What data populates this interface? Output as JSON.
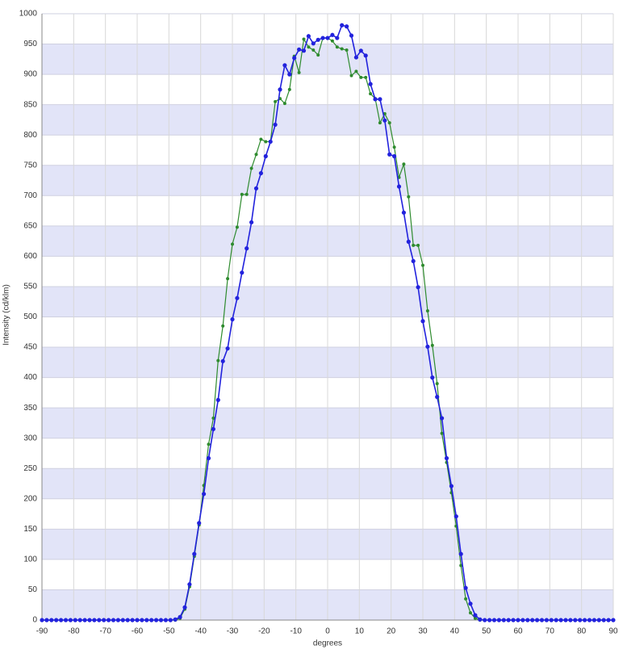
{
  "chart_data": {
    "type": "line",
    "x_label": "degrees",
    "y_label": "Intensity (cd/klm)",
    "x": [
      -90,
      -88.5,
      -87,
      -85.5,
      -84,
      -82.5,
      -81,
      -79.5,
      -78,
      -76.5,
      -75,
      -73.5,
      -72,
      -70.5,
      -69,
      -67.5,
      -66,
      -64.5,
      -63,
      -61.5,
      -60,
      -58.5,
      -57,
      -55.5,
      -54,
      -52.5,
      -51,
      -49.5,
      -48,
      -46.5,
      -45,
      -43.5,
      -42,
      -40.5,
      -39,
      -37.5,
      -36,
      -34.5,
      -33,
      -31.5,
      -30,
      -28.5,
      -27,
      -25.5,
      -24,
      -22.5,
      -21,
      -19.5,
      -18,
      -16.5,
      -15,
      -13.5,
      -12,
      -10.5,
      -9,
      -7.5,
      -6,
      -4.5,
      -3,
      -1.5,
      0,
      1.5,
      3,
      4.5,
      6,
      7.5,
      9,
      10.5,
      12,
      13.5,
      15,
      16.5,
      18,
      19.5,
      21,
      22.5,
      24,
      25.5,
      27,
      28.5,
      30,
      31.5,
      33,
      34.5,
      36,
      37.5,
      39,
      40.5,
      42,
      43.5,
      45,
      46.5,
      48,
      49.5,
      51,
      52.5,
      54,
      55.5,
      57,
      58.5,
      60,
      61.5,
      63,
      64.5,
      66,
      67.5,
      69,
      70.5,
      72,
      73.5,
      75,
      76.5,
      78,
      79.5,
      81,
      82.5,
      84,
      85.5,
      87,
      88.5,
      90
    ],
    "series": [
      {
        "color": "#2e8b2e",
        "values": [
          0,
          0,
          0,
          0,
          0,
          0,
          0,
          0,
          0,
          0,
          0,
          0,
          0,
          0,
          0,
          0,
          0,
          0,
          0,
          0,
          0,
          0,
          0,
          0,
          0,
          0,
          0,
          0,
          0,
          3,
          18,
          55,
          105,
          157,
          222,
          290,
          333,
          428,
          485,
          563,
          620,
          648,
          702,
          702,
          745,
          768,
          793,
          789,
          789,
          855,
          860,
          852,
          875,
          930,
          903,
          958,
          945,
          940,
          932,
          960,
          960,
          955,
          945,
          942,
          940,
          898,
          905,
          895,
          895,
          868,
          860,
          820,
          835,
          820,
          780,
          730,
          752,
          698,
          618,
          618,
          585,
          510,
          453,
          390,
          308,
          260,
          210,
          155,
          90,
          35,
          12,
          3,
          0,
          0,
          0,
          0,
          0,
          0,
          0,
          0,
          0,
          0,
          0,
          0,
          0,
          0,
          0,
          0,
          0,
          0,
          0,
          0,
          0,
          0,
          0,
          0,
          0,
          0,
          0,
          0,
          0
        ]
      },
      {
        "color": "#2222dd",
        "values": [
          0,
          0,
          0,
          0,
          0,
          0,
          0,
          0,
          0,
          0,
          0,
          0,
          0,
          0,
          0,
          0,
          0,
          0,
          0,
          0,
          0,
          0,
          0,
          0,
          0,
          0,
          0,
          0,
          1,
          5,
          21,
          59,
          109,
          160,
          208,
          267,
          315,
          363,
          427,
          448,
          496,
          531,
          573,
          613,
          656,
          712,
          737,
          765,
          789,
          817,
          875,
          915,
          900,
          927,
          941,
          939,
          963,
          951,
          957,
          960,
          960,
          965,
          960,
          981,
          979,
          964,
          928,
          939,
          931,
          884,
          859,
          859,
          824,
          768,
          765,
          715,
          672,
          624,
          592,
          549,
          493,
          451,
          400,
          368,
          333,
          267,
          221,
          171,
          109,
          53,
          27,
          8,
          1,
          0,
          0,
          0,
          0,
          0,
          0,
          0,
          0,
          0,
          0,
          0,
          0,
          0,
          0,
          0,
          0,
          0,
          0,
          0,
          0,
          0,
          0,
          0,
          0,
          0,
          0,
          0,
          0
        ]
      }
    ],
    "xlim": [
      -90,
      90
    ],
    "xticks": [
      -90,
      -80,
      -70,
      -60,
      -50,
      -40,
      -30,
      -20,
      -10,
      0,
      10,
      20,
      30,
      40,
      50,
      60,
      70,
      80,
      90
    ],
    "ylim": [
      0,
      1000
    ],
    "yticks": [
      0,
      50,
      100,
      150,
      200,
      250,
      300,
      350,
      400,
      450,
      500,
      550,
      600,
      650,
      700,
      750,
      800,
      850,
      900,
      950,
      1000
    ],
    "grid": true
  }
}
